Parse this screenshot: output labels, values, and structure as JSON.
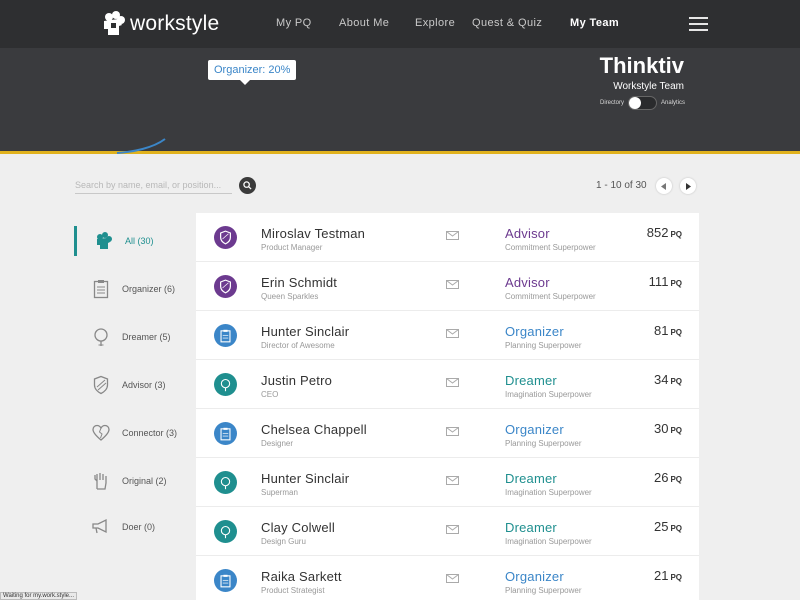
{
  "nav": {
    "logo_text": "workstyle",
    "links": [
      "My PQ",
      "About Me",
      "Explore",
      "Quest & Quiz",
      "My Team"
    ]
  },
  "hero": {
    "tooltip": "Organizer: 20%",
    "company": "Thinktiv",
    "team_label": "Workstyle Team",
    "toggle_left": "Directory",
    "toggle_right": "Analytics"
  },
  "search": {
    "placeholder": "Search by name, email, or position..."
  },
  "pager": {
    "text": "1 - 10 of 30"
  },
  "sidebar": {
    "items": [
      {
        "label": "All (30)",
        "icon": "brain-icon"
      },
      {
        "label": "Organizer (6)",
        "icon": "clipboard-icon"
      },
      {
        "label": "Dreamer (5)",
        "icon": "lightbulb-icon"
      },
      {
        "label": "Advisor (3)",
        "icon": "shield-icon"
      },
      {
        "label": "Connector (3)",
        "icon": "heart-icon"
      },
      {
        "label": "Original (2)",
        "icon": "hand-icon"
      },
      {
        "label": "Doer (0)",
        "icon": "megaphone-icon"
      }
    ]
  },
  "colors": {
    "advisor": "#6c3a8f",
    "organizer": "#3b86c8",
    "dreamer": "#1f8f8f",
    "accent": "#e1b21d"
  },
  "people": [
    {
      "name": "Miroslav Testman",
      "title": "Product Manager",
      "type": "Advisor",
      "superpower": "Commitment Superpower",
      "pq": "852",
      "pq_unit": "PQ"
    },
    {
      "name": "Erin Schmidt",
      "title": "Queen Sparkles",
      "type": "Advisor",
      "superpower": "Commitment Superpower",
      "pq": "111",
      "pq_unit": "PQ"
    },
    {
      "name": "Hunter Sinclair",
      "title": "Director of Awesome",
      "type": "Organizer",
      "superpower": "Planning Superpower",
      "pq": "81",
      "pq_unit": "PQ"
    },
    {
      "name": "Justin Petro",
      "title": "CEO",
      "type": "Dreamer",
      "superpower": "Imagination Superpower",
      "pq": "34",
      "pq_unit": "PQ"
    },
    {
      "name": "Chelsea Chappell",
      "title": "Designer",
      "type": "Organizer",
      "superpower": "Planning Superpower",
      "pq": "30",
      "pq_unit": "PQ"
    },
    {
      "name": "Hunter Sinclair",
      "title": "Superman",
      "type": "Dreamer",
      "superpower": "Imagination Superpower",
      "pq": "26",
      "pq_unit": "PQ"
    },
    {
      "name": "Clay Colwell",
      "title": "Design Guru",
      "type": "Dreamer",
      "superpower": "Imagination Superpower",
      "pq": "25",
      "pq_unit": "PQ"
    },
    {
      "name": "Raika Sarkett",
      "title": "Product Strategist",
      "type": "Organizer",
      "superpower": "Planning Superpower",
      "pq": "21",
      "pq_unit": "PQ"
    }
  ],
  "status_bar": "Waiting for my.work.style..."
}
